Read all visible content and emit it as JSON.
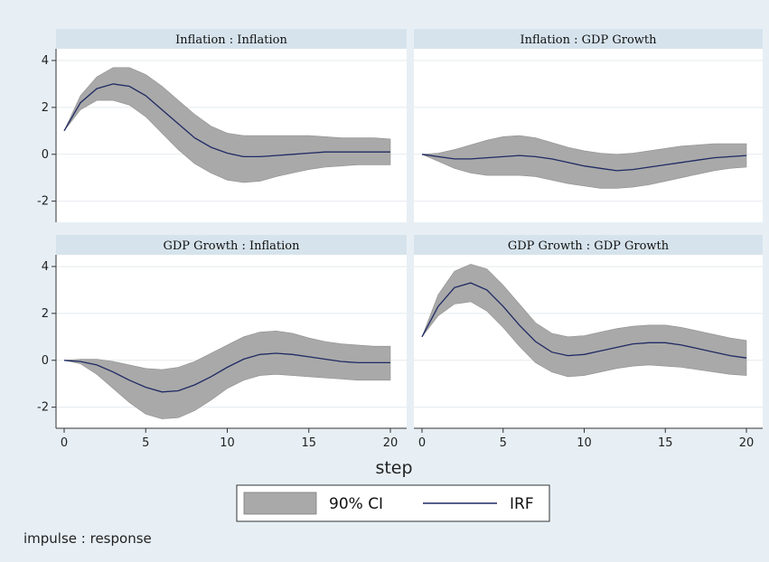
{
  "chart_data": {
    "type": "line",
    "layout": "2x2 panel grid",
    "xlabel": "step",
    "note": "impulse : response",
    "legend": {
      "items": [
        "90% CI",
        "IRF"
      ],
      "position": "bottom-center"
    },
    "colors": {
      "background": "#e7eff5",
      "plot_area": "#ffffff",
      "title_strip": "#d6e3ec",
      "band": "#a9a9a9",
      "line": "#1f2a63",
      "grid": "#e4eaee"
    },
    "x_ticks": [
      0,
      5,
      10,
      15,
      20
    ],
    "y_ticks": [
      -2,
      0,
      2,
      4
    ],
    "xlim": [
      0,
      20
    ],
    "ylim": [
      -2.9,
      4.5
    ],
    "grid": true,
    "panels": [
      {
        "title": "Inflation : Inflation",
        "x": [
          0,
          1,
          2,
          3,
          4,
          5,
          6,
          7,
          8,
          9,
          10,
          11,
          12,
          13,
          14,
          15,
          16,
          17,
          18,
          19,
          20
        ],
        "irf": [
          1.0,
          2.2,
          2.8,
          3.0,
          2.9,
          2.5,
          1.9,
          1.3,
          0.7,
          0.3,
          0.05,
          -0.1,
          -0.1,
          -0.05,
          0.0,
          0.05,
          0.1,
          0.1,
          0.1,
          0.1,
          0.1
        ],
        "lower": [
          1.0,
          1.9,
          2.3,
          2.3,
          2.1,
          1.6,
          0.9,
          0.2,
          -0.4,
          -0.8,
          -1.1,
          -1.2,
          -1.15,
          -0.95,
          -0.8,
          -0.65,
          -0.55,
          -0.5,
          -0.45,
          -0.45,
          -0.45
        ],
        "upper": [
          1.0,
          2.5,
          3.3,
          3.7,
          3.7,
          3.4,
          2.9,
          2.3,
          1.7,
          1.2,
          0.9,
          0.8,
          0.8,
          0.8,
          0.8,
          0.8,
          0.75,
          0.7,
          0.7,
          0.7,
          0.65
        ]
      },
      {
        "title": "Inflation : GDP Growth",
        "x": [
          0,
          1,
          2,
          3,
          4,
          5,
          6,
          7,
          8,
          9,
          10,
          11,
          12,
          13,
          14,
          15,
          16,
          17,
          18,
          19,
          20
        ],
        "irf": [
          0.0,
          -0.1,
          -0.2,
          -0.2,
          -0.15,
          -0.1,
          -0.05,
          -0.1,
          -0.2,
          -0.35,
          -0.5,
          -0.6,
          -0.7,
          -0.65,
          -0.55,
          -0.45,
          -0.35,
          -0.25,
          -0.15,
          -0.1,
          -0.05
        ],
        "lower": [
          0.0,
          -0.3,
          -0.6,
          -0.8,
          -0.9,
          -0.9,
          -0.9,
          -0.95,
          -1.1,
          -1.25,
          -1.35,
          -1.45,
          -1.45,
          -1.4,
          -1.3,
          -1.15,
          -1.0,
          -0.85,
          -0.7,
          -0.6,
          -0.55
        ],
        "upper": [
          0.0,
          0.05,
          0.2,
          0.4,
          0.6,
          0.75,
          0.8,
          0.7,
          0.5,
          0.3,
          0.15,
          0.05,
          0.0,
          0.05,
          0.15,
          0.25,
          0.35,
          0.4,
          0.45,
          0.45,
          0.45
        ]
      },
      {
        "title": "GDP Growth : Inflation",
        "x": [
          0,
          1,
          2,
          3,
          4,
          5,
          6,
          7,
          8,
          9,
          10,
          11,
          12,
          13,
          14,
          15,
          16,
          17,
          18,
          19,
          20
        ],
        "irf": [
          0.0,
          -0.05,
          -0.2,
          -0.5,
          -0.85,
          -1.15,
          -1.35,
          -1.3,
          -1.05,
          -0.7,
          -0.3,
          0.05,
          0.25,
          0.3,
          0.25,
          0.15,
          0.05,
          -0.05,
          -0.1,
          -0.1,
          -0.1
        ],
        "lower": [
          0.0,
          -0.15,
          -0.6,
          -1.2,
          -1.8,
          -2.3,
          -2.5,
          -2.45,
          -2.15,
          -1.7,
          -1.2,
          -0.85,
          -0.65,
          -0.6,
          -0.65,
          -0.7,
          -0.75,
          -0.8,
          -0.85,
          -0.85,
          -0.85
        ],
        "upper": [
          0.0,
          0.05,
          0.05,
          -0.05,
          -0.2,
          -0.35,
          -0.4,
          -0.3,
          -0.05,
          0.3,
          0.65,
          1.0,
          1.2,
          1.25,
          1.15,
          0.95,
          0.8,
          0.7,
          0.65,
          0.6,
          0.6
        ]
      },
      {
        "title": "GDP Growth : GDP Growth",
        "x": [
          0,
          1,
          2,
          3,
          4,
          5,
          6,
          7,
          8,
          9,
          10,
          11,
          12,
          13,
          14,
          15,
          16,
          17,
          18,
          19,
          20
        ],
        "irf": [
          1.0,
          2.3,
          3.1,
          3.3,
          3.0,
          2.3,
          1.5,
          0.8,
          0.35,
          0.2,
          0.25,
          0.4,
          0.55,
          0.7,
          0.75,
          0.75,
          0.65,
          0.5,
          0.35,
          0.2,
          0.1
        ],
        "lower": [
          1.0,
          1.9,
          2.4,
          2.5,
          2.1,
          1.4,
          0.6,
          -0.1,
          -0.5,
          -0.7,
          -0.65,
          -0.5,
          -0.35,
          -0.25,
          -0.2,
          -0.25,
          -0.3,
          -0.4,
          -0.5,
          -0.6,
          -0.65
        ],
        "upper": [
          1.0,
          2.8,
          3.8,
          4.1,
          3.9,
          3.2,
          2.4,
          1.6,
          1.15,
          1.0,
          1.05,
          1.2,
          1.35,
          1.45,
          1.5,
          1.5,
          1.4,
          1.25,
          1.1,
          0.95,
          0.85
        ]
      }
    ]
  }
}
